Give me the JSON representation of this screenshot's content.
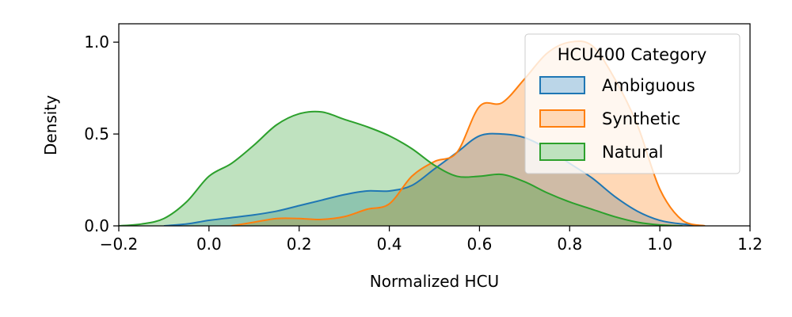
{
  "chart_data": {
    "type": "area",
    "title": "",
    "xlabel": "Normalized HCU",
    "ylabel": "Density",
    "xlim": [
      -0.2,
      1.2
    ],
    "ylim": [
      0,
      1.1
    ],
    "x_ticks": [
      -0.2,
      0.0,
      0.2,
      0.4,
      0.6,
      0.8,
      1.0,
      1.2
    ],
    "x_tick_labels": [
      "−0.2",
      "0.0",
      "0.2",
      "0.4",
      "0.6",
      "0.8",
      "1.0",
      "1.2"
    ],
    "y_ticks": [
      0.0,
      0.5,
      1.0
    ],
    "y_tick_labels": [
      "0.0",
      "0.5",
      "1.0"
    ],
    "grid": false,
    "legend": {
      "title": "HCU400 Category",
      "placement": "top-right"
    },
    "series": [
      {
        "name": "Ambiguous",
        "color": "#1f77b4",
        "fill_opacity": 0.3,
        "x": [
          -0.1,
          -0.05,
          0.0,
          0.05,
          0.1,
          0.15,
          0.2,
          0.25,
          0.3,
          0.35,
          0.4,
          0.45,
          0.5,
          0.55,
          0.6,
          0.65,
          0.7,
          0.75,
          0.8,
          0.85,
          0.9,
          0.95,
          1.0,
          1.05,
          1.1
        ],
        "values": [
          0.0,
          0.01,
          0.03,
          0.045,
          0.06,
          0.08,
          0.11,
          0.14,
          0.17,
          0.19,
          0.19,
          0.22,
          0.31,
          0.4,
          0.49,
          0.5,
          0.48,
          0.42,
          0.34,
          0.26,
          0.16,
          0.08,
          0.03,
          0.01,
          0.0
        ]
      },
      {
        "name": "Synthetic",
        "color": "#ff7f0e",
        "fill_opacity": 0.3,
        "x": [
          0.05,
          0.1,
          0.15,
          0.2,
          0.25,
          0.3,
          0.35,
          0.4,
          0.45,
          0.5,
          0.55,
          0.6,
          0.65,
          0.7,
          0.75,
          0.8,
          0.85,
          0.9,
          0.95,
          1.0,
          1.05,
          1.1
        ],
        "values": [
          0.0,
          0.02,
          0.04,
          0.04,
          0.035,
          0.05,
          0.09,
          0.12,
          0.27,
          0.35,
          0.4,
          0.65,
          0.67,
          0.8,
          0.94,
          1.0,
          0.98,
          0.8,
          0.55,
          0.2,
          0.03,
          0.0
        ]
      },
      {
        "name": "Natural",
        "color": "#2ca02c",
        "fill_opacity": 0.3,
        "x": [
          -0.2,
          -0.15,
          -0.1,
          -0.05,
          0.0,
          0.05,
          0.1,
          0.15,
          0.2,
          0.25,
          0.3,
          0.35,
          0.4,
          0.45,
          0.5,
          0.55,
          0.6,
          0.65,
          0.7,
          0.75,
          0.8,
          0.85,
          0.9,
          0.95,
          1.0,
          1.05
        ],
        "values": [
          0.0,
          0.01,
          0.04,
          0.13,
          0.27,
          0.34,
          0.44,
          0.55,
          0.61,
          0.62,
          0.58,
          0.54,
          0.49,
          0.42,
          0.33,
          0.27,
          0.27,
          0.28,
          0.24,
          0.18,
          0.13,
          0.09,
          0.05,
          0.02,
          0.005,
          0.0
        ]
      }
    ]
  }
}
